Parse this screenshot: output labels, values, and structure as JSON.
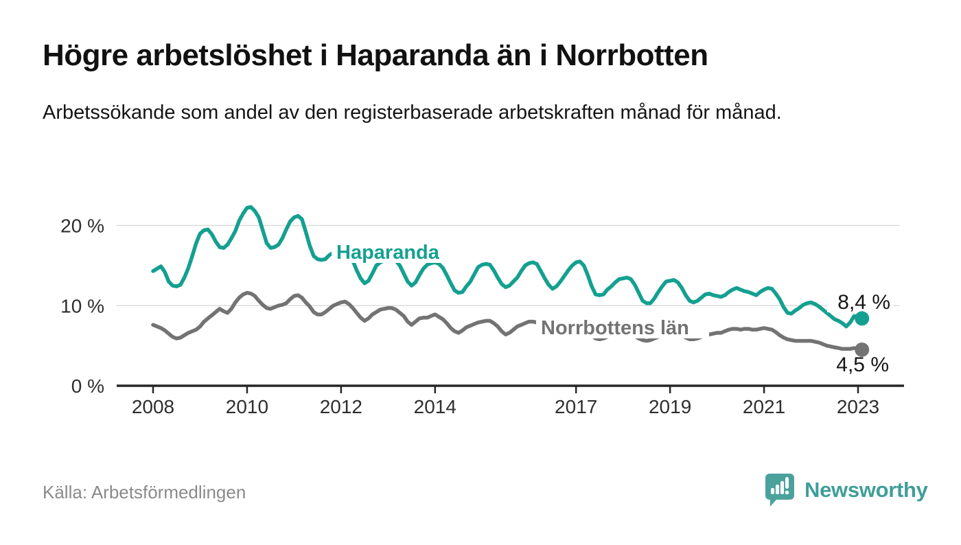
{
  "header": {
    "title": "Högre arbetslöshet i Haparanda än i Norrbotten",
    "subtitle": "Arbetssökande som andel av den registerbaserade arbetskraften månad för månad."
  },
  "footer": {
    "source": "Källa: Arbetsförmedlingen"
  },
  "logo": {
    "text": "Newsworthy",
    "color": "#3f9e99"
  },
  "chart_data": {
    "type": "line",
    "title": "Högre arbetslöshet i Haparanda än i Norrbotten",
    "subtitle": "Arbetssökande som andel av den registerbaserade arbetskraften månad för månad.",
    "source": "Källa: Arbetsförmedlingen",
    "unit": "%",
    "frequency": "monthly",
    "x_start": "2008-01",
    "x_end": "2023-02",
    "ylim": [
      0,
      24
    ],
    "grid": "horizontal",
    "legend_position": "inline-labels",
    "y_ticks": [
      {
        "value": 0,
        "label": "0 %"
      },
      {
        "value": 10,
        "label": "10 %"
      },
      {
        "value": 20,
        "label": "20 %"
      }
    ],
    "x_ticks": [
      {
        "year": 2008,
        "label": "2008"
      },
      {
        "year": 2010,
        "label": "2010"
      },
      {
        "year": 2012,
        "label": "2012"
      },
      {
        "year": 2014,
        "label": "2014"
      },
      {
        "year": 2017,
        "label": "2017"
      },
      {
        "year": 2019,
        "label": "2019"
      },
      {
        "year": 2021,
        "label": "2021"
      },
      {
        "year": 2023,
        "label": "2023"
      }
    ],
    "colors": {
      "grid": "#dcdcdc",
      "axis": "#262626",
      "axis_text": "#2e2e2e",
      "value_label_text": "#161616"
    },
    "series": [
      {
        "name": "Haparanda",
        "color": "#14a090",
        "end_value": 8.4,
        "end_label": "8,4 %",
        "values": [
          14.3,
          14.6,
          14.9,
          14.2,
          13.0,
          12.5,
          12.4,
          12.6,
          13.5,
          14.7,
          16.2,
          17.8,
          19.0,
          19.4,
          19.5,
          18.9,
          18.0,
          17.3,
          17.2,
          17.6,
          18.4,
          19.3,
          20.6,
          21.5,
          22.2,
          22.3,
          21.8,
          21.0,
          19.4,
          17.8,
          17.2,
          17.3,
          17.6,
          18.4,
          19.5,
          20.5,
          21.0,
          21.2,
          20.8,
          19.2,
          17.5,
          16.2,
          15.8,
          15.7,
          15.8,
          16.3,
          16.6,
          16.7,
          16.8,
          16.5,
          16.2,
          15.6,
          14.4,
          13.4,
          12.8,
          13.1,
          14.0,
          15.0,
          15.4,
          15.6,
          15.7,
          15.8,
          15.6,
          15.0,
          14.0,
          13.0,
          12.5,
          12.9,
          13.8,
          14.6,
          15.1,
          15.3,
          15.4,
          15.2,
          14.7,
          13.8,
          12.8,
          11.9,
          11.6,
          11.7,
          12.4,
          13.0,
          13.9,
          14.8,
          15.1,
          15.2,
          15.1,
          14.4,
          13.5,
          12.7,
          12.3,
          12.5,
          13.0,
          13.5,
          14.3,
          15.0,
          15.3,
          15.4,
          15.2,
          14.3,
          13.4,
          12.6,
          12.1,
          12.4,
          13.0,
          13.7,
          14.4,
          15.0,
          15.4,
          15.5,
          15.0,
          13.8,
          12.4,
          11.4,
          11.3,
          11.4,
          12.0,
          12.4,
          12.9,
          13.3,
          13.4,
          13.5,
          13.3,
          12.6,
          11.6,
          10.6,
          10.3,
          10.3,
          10.9,
          11.7,
          12.4,
          13.0,
          13.1,
          13.2,
          12.9,
          12.2,
          11.3,
          10.6,
          10.4,
          10.6,
          11.0,
          11.4,
          11.5,
          11.3,
          11.2,
          11.1,
          11.3,
          11.7,
          12.0,
          12.2,
          12.0,
          11.8,
          11.7,
          11.5,
          11.3,
          11.7,
          12.0,
          12.2,
          12.1,
          11.5,
          10.8,
          9.8,
          9.1,
          9.0,
          9.4,
          9.7,
          10.1,
          10.3,
          10.4,
          10.2,
          9.9,
          9.5,
          9.1,
          8.7,
          8.3,
          8.1,
          7.8,
          7.4,
          7.9,
          8.7,
          8.6,
          8.4
        ]
      },
      {
        "name": "Norrbottens län",
        "color": "#737373",
        "end_value": 4.5,
        "end_label": "4,5 %",
        "values": [
          7.6,
          7.4,
          7.2,
          6.9,
          6.5,
          6.1,
          5.9,
          6.0,
          6.3,
          6.6,
          6.8,
          7.0,
          7.4,
          8.0,
          8.4,
          8.8,
          9.2,
          9.6,
          9.3,
          9.1,
          9.6,
          10.4,
          11.0,
          11.4,
          11.6,
          11.5,
          11.2,
          10.6,
          10.1,
          9.7,
          9.6,
          9.8,
          10.0,
          10.1,
          10.3,
          10.8,
          11.2,
          11.3,
          11.0,
          10.4,
          9.9,
          9.2,
          8.9,
          8.9,
          9.2,
          9.6,
          10.0,
          10.2,
          10.4,
          10.5,
          10.2,
          9.7,
          9.1,
          8.5,
          8.1,
          8.4,
          8.9,
          9.2,
          9.5,
          9.6,
          9.7,
          9.7,
          9.5,
          9.1,
          8.7,
          8.0,
          7.6,
          8.0,
          8.4,
          8.5,
          8.5,
          8.7,
          8.9,
          8.6,
          8.3,
          7.8,
          7.2,
          6.8,
          6.6,
          6.9,
          7.3,
          7.5,
          7.7,
          7.9,
          8.0,
          8.1,
          8.1,
          7.8,
          7.4,
          6.8,
          6.4,
          6.6,
          7.0,
          7.4,
          7.6,
          7.8,
          8.0,
          8.0,
          7.9,
          7.7,
          7.6,
          7.1,
          6.8,
          7.0,
          7.3,
          7.5,
          7.6,
          7.6,
          7.4,
          7.3,
          7.1,
          6.8,
          6.3,
          5.9,
          5.8,
          5.9,
          6.1,
          6.3,
          6.4,
          6.5,
          6.6,
          6.6,
          6.4,
          6.2,
          5.9,
          5.7,
          5.6,
          5.7,
          5.9,
          6.1,
          6.3,
          6.5,
          6.6,
          6.6,
          6.5,
          6.3,
          6.0,
          5.8,
          5.8,
          5.9,
          6.1,
          6.3,
          6.4,
          6.5,
          6.6,
          6.6,
          6.8,
          7.0,
          7.1,
          7.1,
          7.0,
          7.1,
          7.1,
          7.0,
          7.0,
          7.1,
          7.2,
          7.1,
          7.0,
          6.7,
          6.3,
          6.0,
          5.8,
          5.7,
          5.6,
          5.6,
          5.6,
          5.6,
          5.6,
          5.5,
          5.4,
          5.2,
          5.0,
          4.9,
          4.8,
          4.7,
          4.6,
          4.6,
          4.6,
          4.7,
          4.6,
          4.5
        ]
      }
    ]
  }
}
